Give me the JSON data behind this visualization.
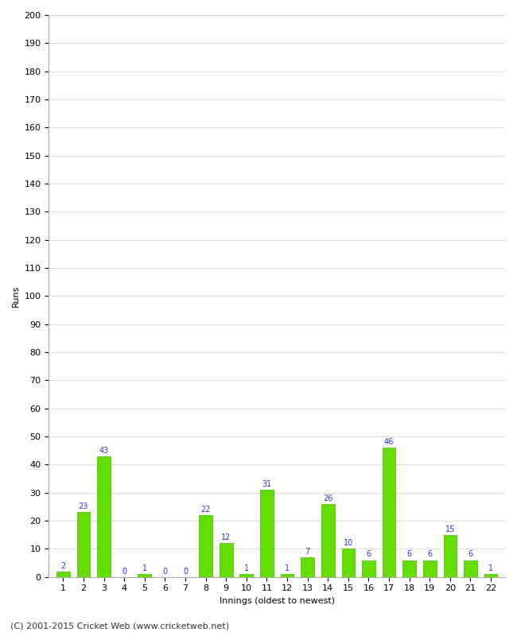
{
  "innings": [
    1,
    2,
    3,
    4,
    5,
    6,
    7,
    8,
    9,
    10,
    11,
    12,
    13,
    14,
    15,
    16,
    17,
    18,
    19,
    20,
    21,
    22
  ],
  "runs": [
    2,
    23,
    43,
    0,
    1,
    0,
    0,
    22,
    12,
    1,
    31,
    1,
    7,
    26,
    10,
    6,
    46,
    6,
    6,
    15,
    6,
    1
  ],
  "bar_color": "#66dd00",
  "bar_edge_color": "#44bb00",
  "label_color": "#3333cc",
  "xlabel": "Innings (oldest to newest)",
  "ylabel": "Runs",
  "ylim": [
    0,
    200
  ],
  "yticks": [
    0,
    10,
    20,
    30,
    40,
    50,
    60,
    70,
    80,
    90,
    100,
    110,
    120,
    130,
    140,
    150,
    160,
    170,
    180,
    190,
    200
  ],
  "background_color": "#ffffff",
  "plot_bg_color": "#ffffff",
  "footer": "(C) 2001-2015 Cricket Web (www.cricketweb.net)",
  "footer_color": "#333333",
  "grid_color": "#dddddd",
  "label_fontsize": 8,
  "tick_fontsize": 8,
  "footer_fontsize": 8,
  "bar_label_fontsize": 7
}
